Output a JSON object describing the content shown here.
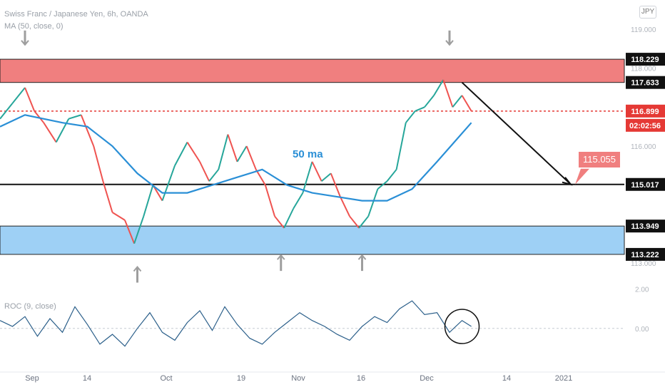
{
  "header": {
    "symbol_line": "Swiss Franc / Japanese Yen, 6h, OANDA",
    "ma_line": "MA (50, close, 0)",
    "roc_line": "ROC (9, close)",
    "currency_button": "JPY"
  },
  "annotations": {
    "ma_label": "50 ma",
    "target_label": "115.055"
  },
  "colors": {
    "up": "#26a69a",
    "down": "#ef5350",
    "ma": "#2a8fd6",
    "resistance_zone": "#f07f7f",
    "support_zone": "#9ed0f5",
    "roc_line": "#2b5f8a"
  },
  "chart_data": [
    {
      "type": "line",
      "title": "",
      "x_ticks": [
        "Sep",
        "14",
        "Oct",
        "19",
        "Nov",
        "16",
        "Dec",
        "14",
        "2021"
      ],
      "y_ticks": [
        113.0,
        114.0,
        115.0,
        116.0,
        117.0,
        118.0,
        119.0
      ],
      "ylim": [
        112.8,
        119.2
      ],
      "price_labels": [
        {
          "value": 118.229,
          "text": "118.229",
          "style": "dark"
        },
        {
          "value": 117.633,
          "text": "117.633",
          "style": "dark"
        },
        {
          "value": 116.899,
          "text": "116.899",
          "style": "red"
        },
        {
          "value": 115.017,
          "text": "115.017",
          "style": "dark"
        },
        {
          "value": 113.949,
          "text": "113.949",
          "style": "dark"
        },
        {
          "value": 113.222,
          "text": "113.222",
          "style": "dark"
        }
      ],
      "countdown": "02:02:56",
      "zones": [
        {
          "name": "resistance",
          "from": 117.633,
          "to": 118.229
        },
        {
          "name": "support",
          "from": 113.222,
          "to": 113.949
        }
      ],
      "levels": [
        {
          "value": 115.017,
          "style": "solid"
        },
        {
          "value": 116.899,
          "style": "dotted"
        }
      ],
      "price_path": [
        [
          0,
          116.7
        ],
        [
          0.02,
          117.1
        ],
        [
          0.04,
          117.5
        ],
        [
          0.055,
          116.9
        ],
        [
          0.07,
          116.6
        ],
        [
          0.09,
          116.1
        ],
        [
          0.11,
          116.7
        ],
        [
          0.13,
          116.8
        ],
        [
          0.15,
          116.0
        ],
        [
          0.165,
          115.1
        ],
        [
          0.18,
          114.3
        ],
        [
          0.2,
          114.1
        ],
        [
          0.215,
          113.5
        ],
        [
          0.23,
          114.2
        ],
        [
          0.245,
          115.0
        ],
        [
          0.26,
          114.6
        ],
        [
          0.28,
          115.5
        ],
        [
          0.3,
          116.1
        ],
        [
          0.32,
          115.6
        ],
        [
          0.335,
          115.1
        ],
        [
          0.35,
          115.4
        ],
        [
          0.365,
          116.3
        ],
        [
          0.38,
          115.6
        ],
        [
          0.395,
          116.0
        ],
        [
          0.41,
          115.4
        ],
        [
          0.425,
          115.0
        ],
        [
          0.44,
          114.2
        ],
        [
          0.455,
          113.9
        ],
        [
          0.47,
          114.4
        ],
        [
          0.485,
          114.8
        ],
        [
          0.5,
          115.6
        ],
        [
          0.515,
          115.1
        ],
        [
          0.53,
          115.3
        ],
        [
          0.545,
          114.7
        ],
        [
          0.56,
          114.2
        ],
        [
          0.575,
          113.9
        ],
        [
          0.59,
          114.2
        ],
        [
          0.605,
          114.9
        ],
        [
          0.62,
          115.1
        ],
        [
          0.635,
          115.4
        ],
        [
          0.65,
          116.6
        ],
        [
          0.665,
          116.9
        ],
        [
          0.68,
          117.0
        ],
        [
          0.695,
          117.3
        ],
        [
          0.71,
          117.7
        ],
        [
          0.725,
          117.0
        ],
        [
          0.74,
          117.3
        ],
        [
          0.755,
          116.9
        ]
      ],
      "ma_path": [
        [
          0,
          116.5
        ],
        [
          0.04,
          116.8
        ],
        [
          0.1,
          116.6
        ],
        [
          0.14,
          116.5
        ],
        [
          0.18,
          116.0
        ],
        [
          0.22,
          115.3
        ],
        [
          0.26,
          114.8
        ],
        [
          0.3,
          114.8
        ],
        [
          0.34,
          115.0
        ],
        [
          0.38,
          115.2
        ],
        [
          0.42,
          115.4
        ],
        [
          0.46,
          115.0
        ],
        [
          0.5,
          114.8
        ],
        [
          0.54,
          114.7
        ],
        [
          0.58,
          114.6
        ],
        [
          0.62,
          114.6
        ],
        [
          0.66,
          114.9
        ],
        [
          0.7,
          115.6
        ],
        [
          0.755,
          116.6
        ]
      ],
      "roc_ticks": [
        2.0,
        0.0
      ],
      "roc_ylim": [
        -1.6,
        2.2
      ],
      "roc_path": [
        [
          0,
          0.4
        ],
        [
          0.02,
          0.1
        ],
        [
          0.04,
          0.6
        ],
        [
          0.06,
          -0.4
        ],
        [
          0.08,
          0.5
        ],
        [
          0.1,
          -0.2
        ],
        [
          0.12,
          1.1
        ],
        [
          0.14,
          0.2
        ],
        [
          0.16,
          -0.8
        ],
        [
          0.18,
          -0.3
        ],
        [
          0.2,
          -0.9
        ],
        [
          0.22,
          0.0
        ],
        [
          0.24,
          0.8
        ],
        [
          0.26,
          -0.2
        ],
        [
          0.28,
          -0.6
        ],
        [
          0.3,
          0.3
        ],
        [
          0.32,
          0.9
        ],
        [
          0.34,
          -0.1
        ],
        [
          0.36,
          1.1
        ],
        [
          0.38,
          0.2
        ],
        [
          0.4,
          -0.5
        ],
        [
          0.42,
          -0.8
        ],
        [
          0.44,
          -0.2
        ],
        [
          0.46,
          0.3
        ],
        [
          0.48,
          0.8
        ],
        [
          0.5,
          0.4
        ],
        [
          0.52,
          0.1
        ],
        [
          0.54,
          -0.3
        ],
        [
          0.56,
          -0.6
        ],
        [
          0.58,
          0.1
        ],
        [
          0.6,
          0.6
        ],
        [
          0.62,
          0.3
        ],
        [
          0.64,
          1.0
        ],
        [
          0.66,
          1.4
        ],
        [
          0.68,
          0.7
        ],
        [
          0.7,
          0.8
        ],
        [
          0.72,
          -0.2
        ],
        [
          0.74,
          0.4
        ],
        [
          0.755,
          0.1
        ]
      ]
    }
  ]
}
